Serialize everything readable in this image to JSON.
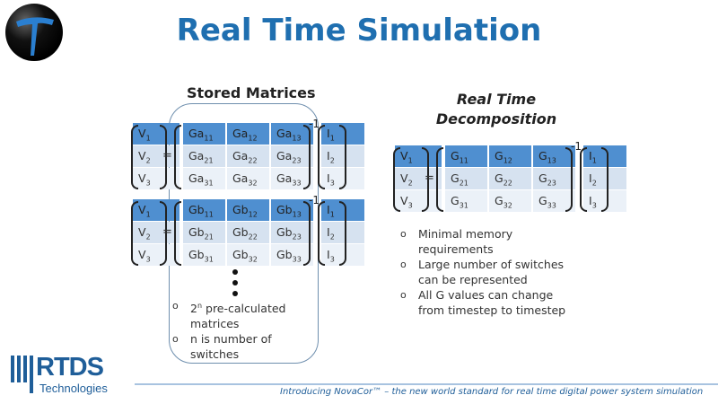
{
  "title": "Real Time Simulation",
  "stored_heading": "Stored Matrices",
  "rt_heading": "Real Time Decomposition",
  "equals": "=",
  "inverse": "-1",
  "matrix_a": {
    "v": [
      {
        "b": "V",
        "s": "1"
      },
      {
        "b": "V",
        "s": "2"
      },
      {
        "b": "V",
        "s": "3"
      }
    ],
    "g": [
      [
        {
          "b": "Ga",
          "s": "11"
        },
        {
          "b": "Ga",
          "s": "12"
        },
        {
          "b": "Ga",
          "s": "13"
        }
      ],
      [
        {
          "b": "Ga",
          "s": "21"
        },
        {
          "b": "Ga",
          "s": "22"
        },
        {
          "b": "Ga",
          "s": "23"
        }
      ],
      [
        {
          "b": "Ga",
          "s": "31"
        },
        {
          "b": "Ga",
          "s": "32"
        },
        {
          "b": "Ga",
          "s": "33"
        }
      ]
    ],
    "i": [
      {
        "b": "I",
        "s": "1"
      },
      {
        "b": "I",
        "s": "2"
      },
      {
        "b": "I",
        "s": "3"
      }
    ]
  },
  "matrix_b": {
    "v": [
      {
        "b": "V",
        "s": "1"
      },
      {
        "b": "V",
        "s": "2"
      },
      {
        "b": "V",
        "s": "3"
      }
    ],
    "g": [
      [
        {
          "b": "Gb",
          "s": "11"
        },
        {
          "b": "Gb",
          "s": "12"
        },
        {
          "b": "Gb",
          "s": "13"
        }
      ],
      [
        {
          "b": "Gb",
          "s": "21"
        },
        {
          "b": "Gb",
          "s": "22"
        },
        {
          "b": "Gb",
          "s": "23"
        }
      ],
      [
        {
          "b": "Gb",
          "s": "31"
        },
        {
          "b": "Gb",
          "s": "32"
        },
        {
          "b": "Gb",
          "s": "33"
        }
      ]
    ],
    "i": [
      {
        "b": "I",
        "s": "1"
      },
      {
        "b": "I",
        "s": "2"
      },
      {
        "b": "I",
        "s": "3"
      }
    ]
  },
  "matrix_rt": {
    "v": [
      {
        "b": "V",
        "s": "1"
      },
      {
        "b": "V",
        "s": "2"
      },
      {
        "b": "V",
        "s": "3"
      }
    ],
    "g": [
      [
        {
          "b": "G",
          "s": "11"
        },
        {
          "b": "G",
          "s": "12"
        },
        {
          "b": "G",
          "s": "13"
        }
      ],
      [
        {
          "b": "G",
          "s": "21"
        },
        {
          "b": "G",
          "s": "22"
        },
        {
          "b": "G",
          "s": "23"
        }
      ],
      [
        {
          "b": "G",
          "s": "31"
        },
        {
          "b": "G",
          "s": "32"
        },
        {
          "b": "G",
          "s": "33"
        }
      ]
    ],
    "i": [
      {
        "b": "I",
        "s": "1"
      },
      {
        "b": "I",
        "s": "2"
      },
      {
        "b": "I",
        "s": "3"
      }
    ]
  },
  "stored_bullets": {
    "b1_base": "2",
    "b1_sup": "n",
    "b1_rest": " pre-calculated matrices",
    "b2": "n is number of switches"
  },
  "rt_bullets": [
    "Minimal memory requirements",
    "Large number of switches can be represented",
    "All G values can change from timestep to timestep"
  ],
  "footer": {
    "logo": "RTDS",
    "logo_sub": "Technologies",
    "tagline": "Introducing NovaCor™ – the new world standard for real time digital power system simulation"
  },
  "colors": {
    "title": "#1f6fb0",
    "header_row": "#4f8fd0",
    "brand": "#1f5e99"
  }
}
